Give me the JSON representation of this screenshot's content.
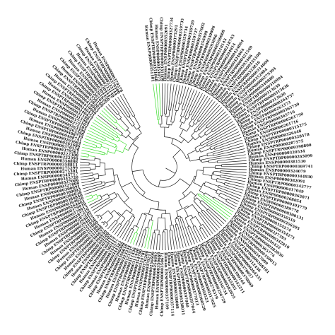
{
  "figure": {
    "type": "circular-phylogenetic-tree",
    "colors": {
      "background": "#ffffff",
      "branch": "#1a1a1a",
      "highlight_branch": "#3ddc2e",
      "label": "#111111"
    },
    "leaf_labels": [
      "Human ENSP00000351101",
      "Chimp ENSPTRP00000351068",
      "Human ENSP00000351073",
      "Chimp ENSPTRP00000331109",
      "Human ENSP00000352091",
      "Chimp ENSPTRP00000327734",
      "Human ENSP00000375291",
      "Chimp ENSPTRP00000359735",
      "Human ENSP00000359734",
      "Chimp ENSPTRP00000359729",
      "Human ENSP00000359727",
      "Chimp ENSPTRP00000357002",
      "Human ENSP00000356998",
      "Chimp ENSPTRP00000330096",
      "Human ENSP00000293096",
      "Chimp ENSPTRP00000296068",
      "Human ENSP00000310143",
      "Chimp ENSPTRP00000218743",
      "Human ENSP00000294014",
      "Chimp ENSPTRP00000424064",
      "Human ENSP00000424064",
      "Chimp ENSPTRP00000421569",
      "Human ENSP00000393466",
      "Chimp ENSPTRP00000335100",
      "Human ENSP00000323816",
      "Chimp ENSPTRP00000314600",
      "Human ENSP00000352084",
      "Chimp ENSPTRP00000279394",
      "Human ENSP00000349880",
      "Chimp ENSPTRP00000310094",
      "Human ENSP00000313639",
      "Chimp ENSPTRP00000313636",
      "Human ENSP00000313620",
      "Chimp ENSPTRP00000264757",
      "Human ENSP00000263373",
      "Chimp ENSPTRP00000365730",
      "Human ENSP00000365716",
      "Chimp ENSPTRP00000261750",
      "Human ENSP00000261716",
      "Chimp ENSPTRP00000315275",
      "Human ENSP00000326448",
      "Chimp ENSPTRP00000328578",
      "Human ENSP00000287575",
      "Chimp ENSPTRP00000398800",
      "Human ENSP00000320534",
      "Chimp ENSPTRP00000265099",
      "Human ENSP00000381530",
      "Chimp ENSPTRP00000369741",
      "Human ENSP00000324079",
      "Chimp ENSPTRP00000344930",
      "Human ENSP00000382091",
      "Chimp ENSPTRP00000343777",
      "Human ENSP00000417049",
      "Chimp ENSPTRP00000365871",
      "Human ENSP00000268054",
      "Chimp ENSPTRP00000303779",
      "Human ENSP00000389778",
      "Chimp ENSPTRP00000300131",
      "Human ENSP00000356510",
      "Chimp ENSPTRP00000356505",
      "Human ENSP00000354274",
      "Chimp ENSPTRP00000354271",
      "Human ENSP00000327393",
      "Chimp ENSPTRP00000342810",
      "Human ENSP00000346422",
      "Chimp ENSPTRP00000382030",
      "Human ENSP00000365774",
      "Chimp ENSPTRP00000350013",
      "Human ENSP00000347099",
      "Chimp ENSPTRP00000368181",
      "Human ENSP00000312436",
      "Chimp ENSPTRP00000264335",
      "Human ENSP00000370057",
      "Chimp ENSPTRP00000370069",
      "Human ENSP00000390164",
      "Chimp ENSPTRP00000342211",
      "Human ENSP00000342205",
      "Chimp ENSPTRP00000382025",
      "Human ENSP00000356734",
      "Chimp ENSPTRP00000356729",
      "Human ENSP00000278319",
      "Chimp ENSPTRP00000317025",
      "Human ENSP00000360523",
      "Chimp ENSPTRP00000360520",
      "Human ENSP00000377013",
      "Chimp ENSPTRP00000297044",
      "Human ENSP00000297040",
      "Chimp ENSPTRP00000338011",
      "Human ENSP00000338008",
      "Chimp ENSPTRP00000357114",
      "Human ENSP00000357109",
      "Chimp ENSPTRP00000350671",
      "Human ENSP00000350669",
      "Chimp ENSPTRP00000256692",
      "Human ENSP00000256690",
      "Chimp ENSPTRP00000370211",
      "Human ENSP00000370208",
      "Chimp ENSPTRP00000354781",
      "Human ENSP00000354780",
      "Chimp ENSPTRP00000311440",
      "Human ENSP00000311438",
      "Chimp ENSPTRP00000323337",
      "Human ENSP00000323334",
      "Chimp ENSPTRP00000396010",
      "Human ENSP00000396008",
      "Chimp ENSPTRP00000344582",
      "Human ENSP00000344577",
      "Chimp ENSPTRP00000360117",
      "Human ENSP00000360115",
      "Chimp ENSPTRP00000303502",
      "Human ENSP00000303500",
      "Chimp ENSPTRP00000366640",
      "Human ENSP00000366637",
      "Chimp ENSPTRP00000331068",
      "Human ENSP00000331061",
      "Chimp ENSPTRP00000321060",
      "Human ENSP00000321058",
      "Chimp ENSPTRP00000394015",
      "Human ENSP00000394012",
      "Chimp ENSPTRP00000287220",
      "Human ENSP00000287219",
      "Chimp ENSPTRP00000379913",
      "Human ENSP00000379910",
      "Chimp ENSPTRP00000264661",
      "Human ENSP00000264659",
      "Chimp ENSPTRP00000386840",
      "Human ENSP00000386838",
      "Chimp ENSPTRP00000300093",
      "Human ENSP00000300091",
      "Chimp ENSPTRP00000327009",
      "Human ENSP00000327006",
      "Chimp ENSPTRP00000345720",
      "Human ENSP00000345717",
      "Chimp ENSPTRP00000275301",
      "Human ENSP00000275299",
      "Chimp ENSPTRP00000358811",
      "Human ENSP00000358808",
      "Chimp ENSPTRP00000222390",
      "Human ENSP00000222388",
      "Chimp ENSPTRP00000370561",
      "Human ENSP00000370558",
      "Chimp ENSPTRP00000265686",
      "Human ENSP00000265684",
      "Chimp ENSPTRP00000408741",
      "Human ENSP00000408739",
      "Chimp ENSPTRP00000263398",
      "Human ENSP00000263396",
      "Chimp ENSPTRP00000372105",
      "Human ENSP00000372102",
      "Chimp ENSPTRP00000311984",
      "Human ENSP00000311981",
      "Chimp ENSPTRP00000240423",
      "Human ENSP00000240421",
      "Chimp ENSPTRP00000419966",
      "Human ENSP00000419963",
      "Chimp ENSPTRP00000358201",
      "Human ENSP00000358199",
      "Chimp ENSPTRP00000261622",
      "Human ENSP00000261620",
      "Chimp ENSPTRP00000304450",
      "Human ENSP00000304447",
      "Chimp ENSPTRP00000233146",
      "Human ENSP00000233144",
      "Chimp ENSPTRP00000379580",
      "Human ENSP00000379578"
    ]
  }
}
